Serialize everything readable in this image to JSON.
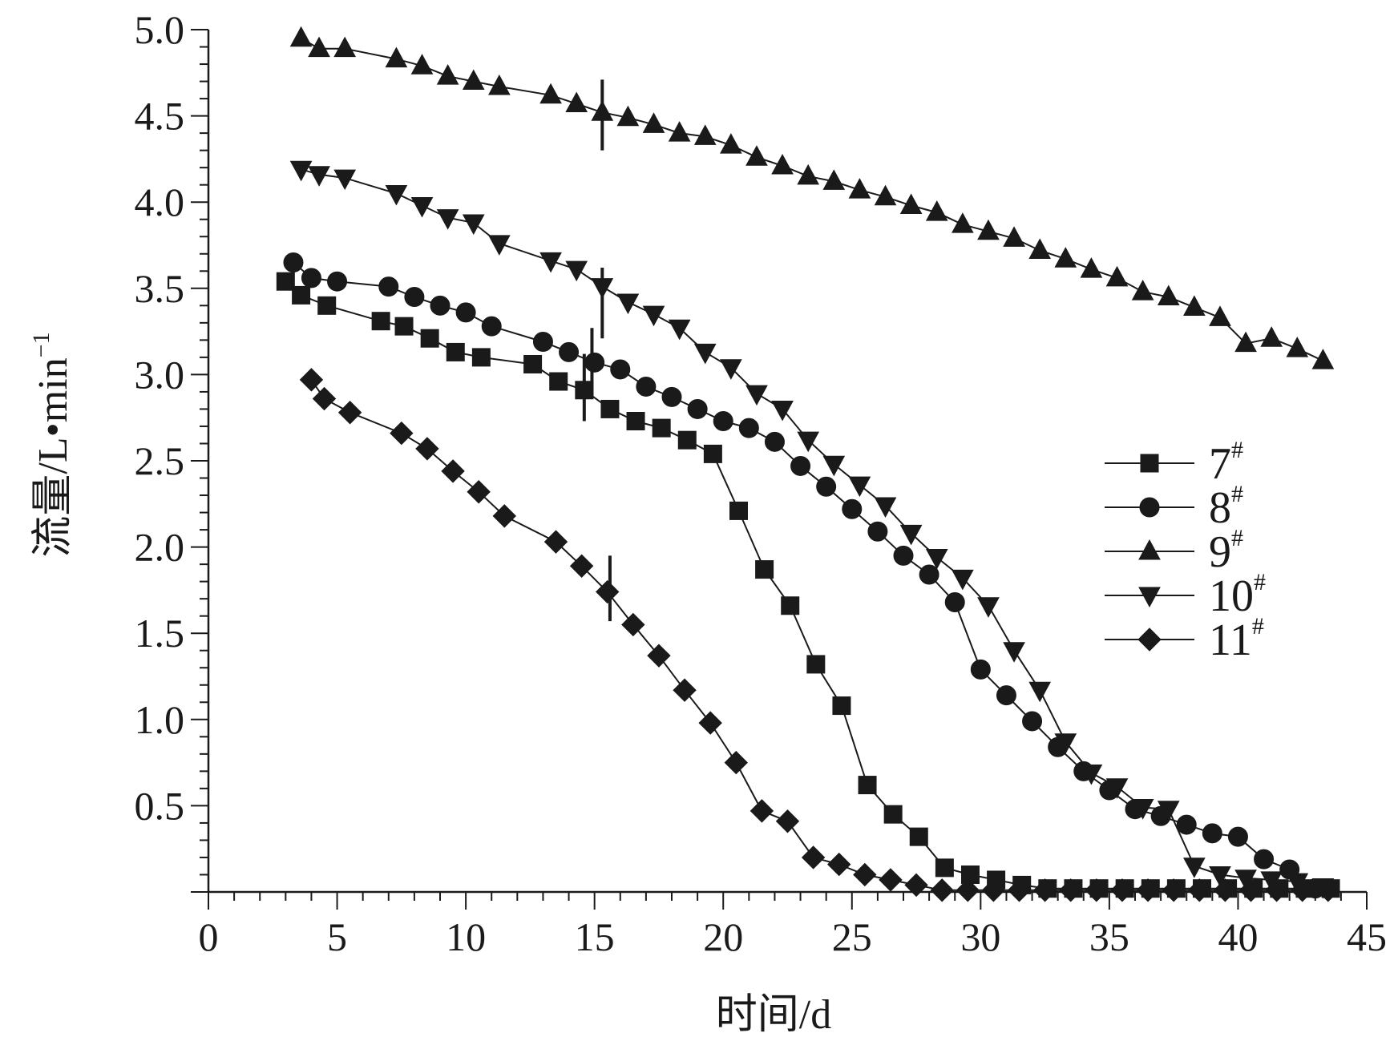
{
  "chart_data": {
    "type": "line",
    "xlabel": "时间/d",
    "ylabel": "流量/L•min",
    "ylabel_superscript": "−1",
    "xlim": [
      0,
      45
    ],
    "ylim": [
      0,
      5.0
    ],
    "x_ticks": [
      "0",
      "5",
      "10",
      "15",
      "20",
      "25",
      "30",
      "35",
      "40",
      "45"
    ],
    "y_ticks": [
      "0.5",
      "1.0",
      "1.5",
      "2.0",
      "2.5",
      "3.0",
      "3.5",
      "4.0",
      "4.5",
      "5.0"
    ],
    "grid": false,
    "legend_position": "right-middle",
    "line_color": "#1a1a1a",
    "series": [
      {
        "name": "7",
        "name_sup": "#",
        "marker": "square",
        "points": [
          [
            3.0,
            3.54
          ],
          [
            3.6,
            3.46
          ],
          [
            4.6,
            3.4
          ],
          [
            6.7,
            3.31
          ],
          [
            7.6,
            3.28
          ],
          [
            8.6,
            3.21
          ],
          [
            9.6,
            3.13
          ],
          [
            10.6,
            3.1
          ],
          [
            12.6,
            3.06
          ],
          [
            13.6,
            2.96
          ],
          [
            14.6,
            2.91
          ],
          [
            15.6,
            2.8
          ],
          [
            16.6,
            2.73
          ],
          [
            17.6,
            2.69
          ],
          [
            18.6,
            2.62
          ],
          [
            19.6,
            2.54
          ],
          [
            20.6,
            2.21
          ],
          [
            21.6,
            1.87
          ],
          [
            22.6,
            1.66
          ],
          [
            23.6,
            1.32
          ],
          [
            24.6,
            1.08
          ],
          [
            25.6,
            0.62
          ],
          [
            26.6,
            0.45
          ],
          [
            27.6,
            0.32
          ],
          [
            28.6,
            0.14
          ],
          [
            29.6,
            0.1
          ],
          [
            30.6,
            0.07
          ],
          [
            31.6,
            0.04
          ],
          [
            32.6,
            0.02
          ],
          [
            33.6,
            0.02
          ],
          [
            34.6,
            0.02
          ],
          [
            35.6,
            0.02
          ],
          [
            36.6,
            0.02
          ],
          [
            37.6,
            0.02
          ],
          [
            38.6,
            0.02
          ],
          [
            39.6,
            0.02
          ],
          [
            40.6,
            0.02
          ],
          [
            41.6,
            0.02
          ],
          [
            42.6,
            0.02
          ],
          [
            43.6,
            0.02
          ]
        ]
      },
      {
        "name": "8",
        "name_sup": "#",
        "marker": "circle",
        "points": [
          [
            3.3,
            3.65
          ],
          [
            4.0,
            3.56
          ],
          [
            5.0,
            3.54
          ],
          [
            7.0,
            3.51
          ],
          [
            8.0,
            3.45
          ],
          [
            9.0,
            3.4
          ],
          [
            10.0,
            3.36
          ],
          [
            11.0,
            3.28
          ],
          [
            13.0,
            3.19
          ],
          [
            14.0,
            3.13
          ],
          [
            15.0,
            3.07
          ],
          [
            16.0,
            3.03
          ],
          [
            17.0,
            2.93
          ],
          [
            18.0,
            2.87
          ],
          [
            19.0,
            2.8
          ],
          [
            20.0,
            2.73
          ],
          [
            21.0,
            2.69
          ],
          [
            22.0,
            2.61
          ],
          [
            23.0,
            2.47
          ],
          [
            24.0,
            2.35
          ],
          [
            25.0,
            2.22
          ],
          [
            26.0,
            2.09
          ],
          [
            27.0,
            1.95
          ],
          [
            28.0,
            1.84
          ],
          [
            29.0,
            1.68
          ],
          [
            30.0,
            1.29
          ],
          [
            31.0,
            1.14
          ],
          [
            32.0,
            0.99
          ],
          [
            33.0,
            0.84
          ],
          [
            34.0,
            0.7
          ],
          [
            35.0,
            0.59
          ],
          [
            36.0,
            0.48
          ],
          [
            37.0,
            0.44
          ],
          [
            38.0,
            0.39
          ],
          [
            39.0,
            0.34
          ],
          [
            40.0,
            0.32
          ],
          [
            41.0,
            0.19
          ],
          [
            42.0,
            0.13
          ],
          [
            43.0,
            0.02
          ]
        ]
      },
      {
        "name": "9",
        "name_sup": "#",
        "marker": "triangle-up",
        "points": [
          [
            3.6,
            4.95
          ],
          [
            4.3,
            4.89
          ],
          [
            5.3,
            4.89
          ],
          [
            7.3,
            4.83
          ],
          [
            8.3,
            4.79
          ],
          [
            9.3,
            4.73
          ],
          [
            10.3,
            4.7
          ],
          [
            11.3,
            4.67
          ],
          [
            13.3,
            4.62
          ],
          [
            14.3,
            4.57
          ],
          [
            15.3,
            4.52
          ],
          [
            16.3,
            4.49
          ],
          [
            17.3,
            4.45
          ],
          [
            18.3,
            4.4
          ],
          [
            19.3,
            4.38
          ],
          [
            20.3,
            4.33
          ],
          [
            21.3,
            4.26
          ],
          [
            22.3,
            4.21
          ],
          [
            23.3,
            4.15
          ],
          [
            24.3,
            4.12
          ],
          [
            25.3,
            4.07
          ],
          [
            26.3,
            4.03
          ],
          [
            27.3,
            3.98
          ],
          [
            28.3,
            3.94
          ],
          [
            29.3,
            3.87
          ],
          [
            30.3,
            3.83
          ],
          [
            31.3,
            3.79
          ],
          [
            32.3,
            3.72
          ],
          [
            33.3,
            3.67
          ],
          [
            34.3,
            3.61
          ],
          [
            35.3,
            3.56
          ],
          [
            36.3,
            3.48
          ],
          [
            37.3,
            3.45
          ],
          [
            38.3,
            3.39
          ],
          [
            39.3,
            3.33
          ],
          [
            40.3,
            3.18
          ],
          [
            41.3,
            3.21
          ],
          [
            42.3,
            3.15
          ],
          [
            43.3,
            3.08
          ]
        ]
      },
      {
        "name": "10",
        "name_sup": "#",
        "marker": "triangle-down",
        "points": [
          [
            3.6,
            4.19
          ],
          [
            4.3,
            4.16
          ],
          [
            5.3,
            4.14
          ],
          [
            7.3,
            4.05
          ],
          [
            8.3,
            3.98
          ],
          [
            9.3,
            3.91
          ],
          [
            10.3,
            3.88
          ],
          [
            11.3,
            3.76
          ],
          [
            13.3,
            3.66
          ],
          [
            14.3,
            3.61
          ],
          [
            15.3,
            3.51
          ],
          [
            16.3,
            3.42
          ],
          [
            17.3,
            3.35
          ],
          [
            18.3,
            3.27
          ],
          [
            19.3,
            3.13
          ],
          [
            20.3,
            3.04
          ],
          [
            21.3,
            2.89
          ],
          [
            22.3,
            2.8
          ],
          [
            23.3,
            2.62
          ],
          [
            24.3,
            2.48
          ],
          [
            25.3,
            2.36
          ],
          [
            26.3,
            2.24
          ],
          [
            27.3,
            2.08
          ],
          [
            28.3,
            1.94
          ],
          [
            29.3,
            1.82
          ],
          [
            30.3,
            1.66
          ],
          [
            31.3,
            1.4
          ],
          [
            32.3,
            1.17
          ],
          [
            33.3,
            0.87
          ],
          [
            34.3,
            0.69
          ],
          [
            35.3,
            0.61
          ],
          [
            36.3,
            0.49
          ],
          [
            37.3,
            0.48
          ],
          [
            38.3,
            0.15
          ],
          [
            39.3,
            0.1
          ],
          [
            40.3,
            0.08
          ],
          [
            41.3,
            0.07
          ],
          [
            42.3,
            0.06
          ],
          [
            43.3,
            0.03
          ]
        ]
      },
      {
        "name": "11",
        "name_sup": "#",
        "marker": "diamond",
        "points": [
          [
            4.0,
            2.97
          ],
          [
            4.5,
            2.86
          ],
          [
            5.5,
            2.78
          ],
          [
            7.5,
            2.66
          ],
          [
            8.5,
            2.57
          ],
          [
            9.5,
            2.44
          ],
          [
            10.5,
            2.32
          ],
          [
            11.5,
            2.18
          ],
          [
            13.5,
            2.03
          ],
          [
            14.5,
            1.89
          ],
          [
            15.5,
            1.74
          ],
          [
            16.5,
            1.55
          ],
          [
            17.5,
            1.37
          ],
          [
            18.5,
            1.17
          ],
          [
            19.5,
            0.98
          ],
          [
            20.5,
            0.75
          ],
          [
            21.5,
            0.47
          ],
          [
            22.5,
            0.41
          ],
          [
            23.5,
            0.2
          ],
          [
            24.5,
            0.16
          ],
          [
            25.5,
            0.1
          ],
          [
            26.5,
            0.07
          ],
          [
            27.5,
            0.04
          ],
          [
            28.5,
            0.01
          ],
          [
            29.5,
            0.01
          ],
          [
            30.5,
            0.01
          ],
          [
            31.5,
            0.01
          ],
          [
            32.5,
            0.01
          ],
          [
            33.5,
            0.01
          ],
          [
            34.5,
            0.01
          ],
          [
            35.5,
            0.01
          ],
          [
            36.5,
            0.01
          ],
          [
            37.5,
            0.01
          ],
          [
            38.5,
            0.01
          ],
          [
            39.5,
            0.01
          ],
          [
            40.5,
            0.01
          ],
          [
            41.5,
            0.01
          ],
          [
            42.5,
            0.01
          ],
          [
            43.5,
            0.01
          ]
        ]
      }
    ],
    "annotations": [
      {
        "type": "vertical-marker",
        "series": "7",
        "x": 14.6,
        "y_range": [
          2.73,
          3.12
        ]
      },
      {
        "type": "vertical-marker",
        "series": "8",
        "x": 14.9,
        "y_range": [
          2.86,
          3.27
        ]
      },
      {
        "type": "vertical-marker",
        "series": "9",
        "x": 15.3,
        "y_range": [
          4.3,
          4.71
        ]
      },
      {
        "type": "vertical-marker",
        "series": "10",
        "x": 15.3,
        "y_range": [
          3.21,
          3.62
        ]
      },
      {
        "type": "vertical-marker",
        "series": "11",
        "x": 15.6,
        "y_range": [
          1.57,
          1.95
        ]
      }
    ]
  }
}
